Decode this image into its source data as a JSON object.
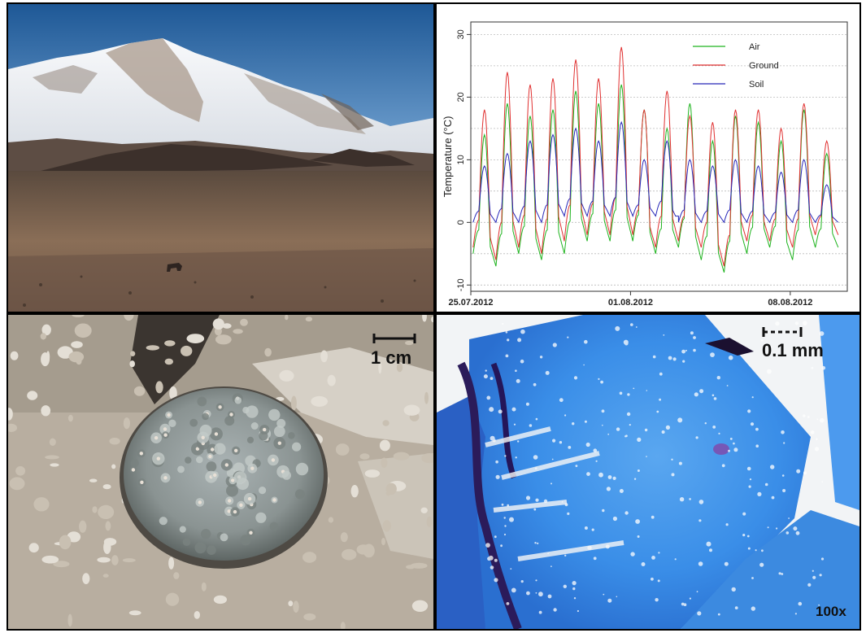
{
  "panels": {
    "plant": {
      "scale_label": "1 cm"
    },
    "micro": {
      "scale_label": "0.1 mm",
      "magnification": "100x"
    }
  },
  "chart_data": {
    "type": "line",
    "title": "",
    "xlabel": "",
    "ylabel": "Temperature (°C)",
    "x_tick_labels": [
      "25.07.2012",
      "01.08.2012",
      "08.08.2012"
    ],
    "x_tick_days": [
      0,
      7,
      14
    ],
    "x_range_days": [
      0,
      16.5
    ],
    "ylim": [
      -11,
      32
    ],
    "y_ticks": [
      -10,
      0,
      10,
      20,
      30
    ],
    "y_gridlines": [
      -10,
      -5,
      0,
      5,
      10,
      15,
      20,
      25,
      30
    ],
    "grid": "horizontal dotted",
    "legend_position": "top-right",
    "series": [
      {
        "name": "Air",
        "color": "#1db31d",
        "daily_max": [
          14,
          19,
          17,
          18,
          21,
          19,
          22,
          18,
          15,
          19,
          13,
          17,
          16,
          13,
          18,
          11
        ],
        "daily_min": [
          -5,
          -7,
          -5,
          -6,
          -5,
          -3,
          -3,
          -3,
          -5,
          -4,
          -6,
          -8,
          -5,
          -4,
          -6,
          -4
        ]
      },
      {
        "name": "Ground",
        "color": "#e03030",
        "daily_max": [
          18,
          24,
          22,
          23,
          26,
          23,
          28,
          18,
          21,
          17,
          16,
          18,
          18,
          15,
          19,
          13
        ],
        "daily_min": [
          -4,
          -6,
          -4,
          -5,
          -3,
          -2,
          -2,
          -2,
          -4,
          -3,
          -4,
          -7,
          -3,
          -3,
          -4,
          -2
        ]
      },
      {
        "name": "Soil",
        "color": "#2626b8",
        "daily_max": [
          9,
          11,
          13,
          14,
          15,
          13,
          16,
          10,
          13,
          10,
          9,
          10,
          9,
          8,
          10,
          6
        ],
        "daily_min": [
          0,
          0,
          0,
          0,
          1,
          1,
          1,
          1,
          1,
          0,
          0,
          0,
          0,
          0,
          0,
          0
        ]
      }
    ]
  }
}
